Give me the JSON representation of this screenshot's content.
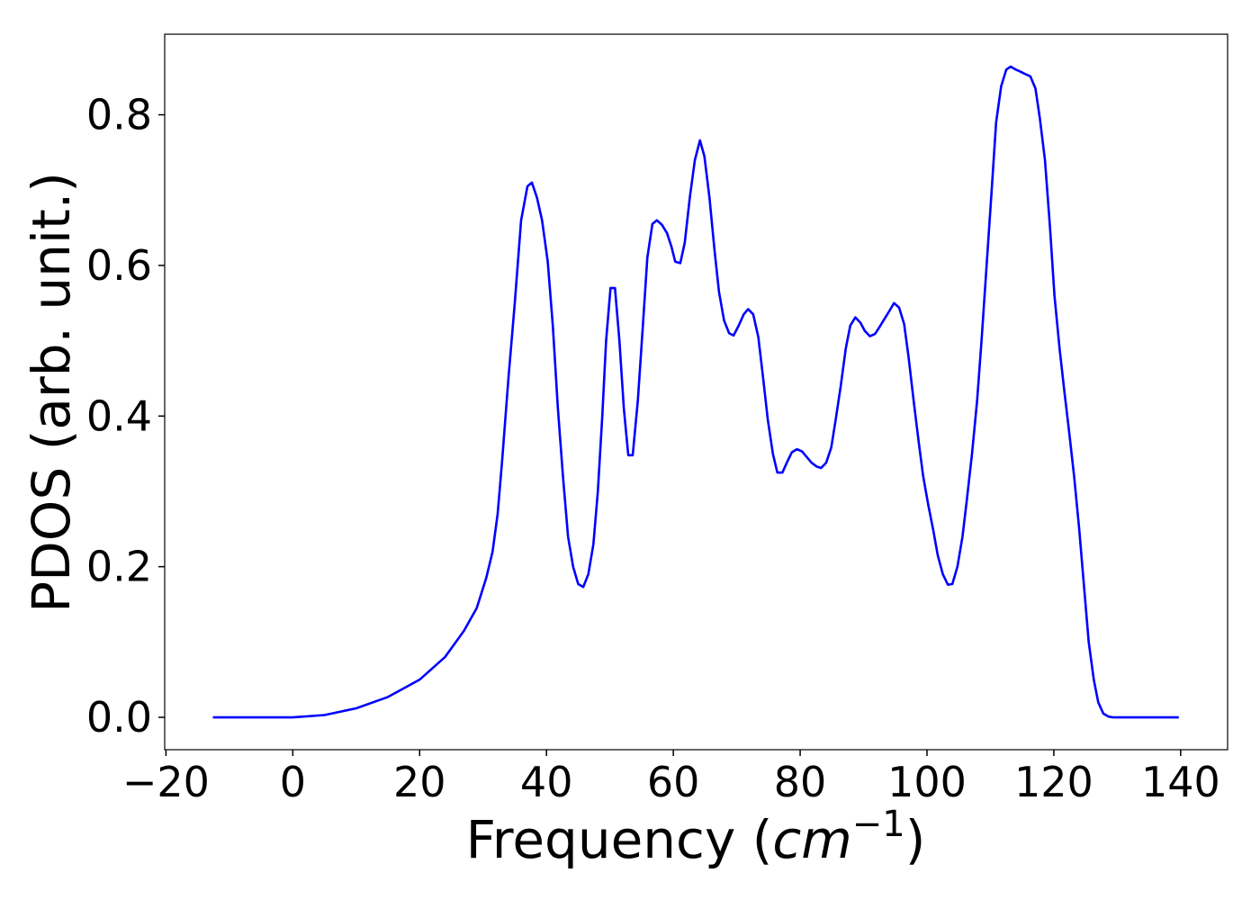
{
  "chart_data": {
    "type": "line",
    "y_label": "PDOS (arb. unit.)",
    "x_label": [
      "Frequency (",
      "cm",
      "−1",
      ")"
    ],
    "xlim": [
      -20.2,
      147.4
    ],
    "ylim": [
      -0.043,
      0.907
    ],
    "xticks": [
      {
        "value": -20,
        "label": "−20"
      },
      0,
      20,
      40,
      60,
      80,
      100,
      120,
      140
    ],
    "yticks": [
      {
        "value": 0,
        "label": "0.0"
      },
      0.2,
      0.4,
      0.6,
      0.8
    ],
    "grid": false,
    "series": [
      {
        "color": "#0000ff",
        "x": [
          -12.6,
          0,
          5,
          10,
          15,
          20,
          24,
          27,
          29,
          30.5,
          31.5,
          32.3,
          33,
          34,
          35,
          36,
          37,
          37.7,
          38.5,
          39.3,
          40.2,
          41,
          41.8,
          42.6,
          43.4,
          44.2,
          45,
          45.8,
          46.6,
          47.4,
          48.1,
          48.8,
          49.4,
          50.1,
          50.8,
          51.5,
          52.2,
          52.9,
          53.6,
          54.4,
          55.2,
          55.9,
          56.7,
          57.4,
          58.2,
          59,
          59.7,
          60.3,
          61.1,
          61.8,
          62.6,
          63.4,
          64.2,
          64.9,
          65.7,
          66.5,
          67.2,
          68,
          68.8,
          69.5,
          70.3,
          71.1,
          71.8,
          72.6,
          73.4,
          74.1,
          74.9,
          75.7,
          76.4,
          77.2,
          78,
          78.7,
          79.5,
          80.3,
          81,
          81.8,
          82.6,
          83.3,
          84.1,
          84.9,
          85.6,
          86.4,
          87.2,
          87.9,
          88.7,
          89.5,
          90.2,
          91,
          91.8,
          92.5,
          93.3,
          94.1,
          94.8,
          95.6,
          96.4,
          97.1,
          97.9,
          98.7,
          99.4,
          100.2,
          101,
          101.7,
          102.5,
          103.3,
          104,
          104.8,
          105.6,
          106.3,
          107.1,
          107.9,
          108.6,
          109.4,
          110.2,
          110.9,
          111.7,
          112.5,
          113.2,
          114,
          114.8,
          115.5,
          116.3,
          117.1,
          117.8,
          118.6,
          119.4,
          120.1,
          120.9,
          121.7,
          122.4,
          123.2,
          124,
          124.7,
          125.5,
          126.3,
          127,
          127.8,
          128.6,
          129.3,
          139.7
        ],
        "values": [
          0,
          0,
          0.003,
          0.012,
          0.027,
          0.05,
          0.08,
          0.115,
          0.145,
          0.185,
          0.22,
          0.27,
          0.34,
          0.45,
          0.55,
          0.66,
          0.705,
          0.71,
          0.69,
          0.66,
          0.605,
          0.52,
          0.41,
          0.32,
          0.24,
          0.2,
          0.177,
          0.173,
          0.19,
          0.23,
          0.3,
          0.4,
          0.5,
          0.57,
          0.57,
          0.5,
          0.41,
          0.348,
          0.348,
          0.42,
          0.52,
          0.61,
          0.655,
          0.66,
          0.654,
          0.643,
          0.625,
          0.605,
          0.603,
          0.63,
          0.69,
          0.74,
          0.766,
          0.745,
          0.69,
          0.62,
          0.565,
          0.527,
          0.51,
          0.507,
          0.52,
          0.535,
          0.542,
          0.535,
          0.505,
          0.455,
          0.395,
          0.35,
          0.325,
          0.325,
          0.34,
          0.352,
          0.356,
          0.353,
          0.346,
          0.338,
          0.333,
          0.331,
          0.338,
          0.358,
          0.395,
          0.44,
          0.49,
          0.52,
          0.531,
          0.524,
          0.513,
          0.506,
          0.509,
          0.518,
          0.529,
          0.54,
          0.55,
          0.544,
          0.522,
          0.478,
          0.42,
          0.365,
          0.32,
          0.282,
          0.248,
          0.215,
          0.19,
          0.176,
          0.177,
          0.2,
          0.24,
          0.29,
          0.35,
          0.42,
          0.5,
          0.6,
          0.7,
          0.79,
          0.838,
          0.86,
          0.864,
          0.86,
          0.857,
          0.854,
          0.851,
          0.835,
          0.795,
          0.74,
          0.65,
          0.56,
          0.49,
          0.43,
          0.38,
          0.32,
          0.25,
          0.18,
          0.1,
          0.05,
          0.02,
          0.005,
          0.001,
          0,
          0
        ]
      }
    ]
  }
}
